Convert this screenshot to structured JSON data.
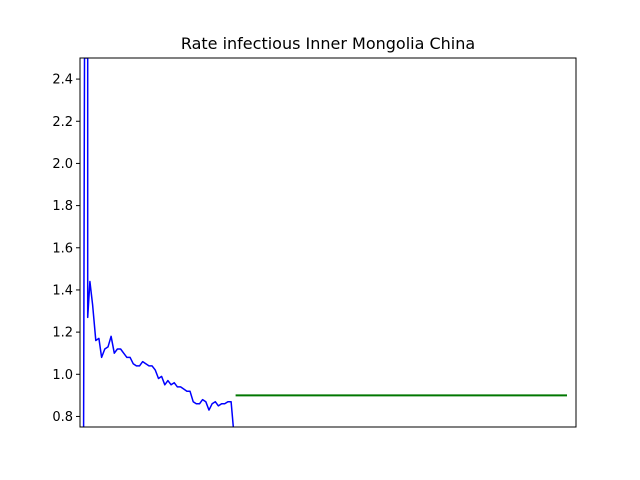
{
  "chart_data": {
    "type": "line",
    "title": "Rate infectious Inner Mongolia China",
    "xlabel": "",
    "ylabel": "",
    "xlim": [
      0,
      110
    ],
    "ylim": [
      0.75,
      2.5
    ],
    "yticks": [
      0.8,
      1.0,
      1.2,
      1.4,
      1.6,
      1.8,
      2.0,
      2.2,
      2.4
    ],
    "ytick_labels": [
      "0.8",
      "1.0",
      "1.2",
      "1.4",
      "1.6",
      "1.8",
      "2.0",
      "2.2",
      "2.4"
    ],
    "xticks_shown": false,
    "grid": false,
    "colors": {
      "observed": "#0000ff",
      "projection": "#007700"
    },
    "series": [
      {
        "color": "#0000ff",
        "x": [
          0.8,
          1.0,
          1.0,
          1.7,
          1.7,
          2.2,
          2.8,
          3.5,
          4.2,
          4.8,
          5.5,
          6.2,
          6.9,
          7.6,
          8.3,
          9.0,
          9.7,
          10.4,
          11.1,
          11.8,
          12.5,
          13.2,
          13.9,
          14.6,
          15.3,
          16.0,
          16.7,
          17.4,
          18.1,
          18.8,
          19.5,
          20.2,
          20.9,
          21.6,
          22.3,
          23.0,
          23.7,
          24.4,
          25.1,
          25.8,
          26.5,
          27.2,
          27.9,
          28.6,
          29.3,
          30.0,
          30.7,
          31.4,
          32.1,
          32.8,
          33.5,
          33.8,
          34.0
        ],
        "y": [
          0.75,
          2.5,
          2.5,
          2.5,
          1.27,
          1.44,
          1.33,
          1.16,
          1.17,
          1.08,
          1.12,
          1.13,
          1.18,
          1.1,
          1.12,
          1.12,
          1.1,
          1.08,
          1.08,
          1.05,
          1.04,
          1.04,
          1.06,
          1.05,
          1.04,
          1.04,
          1.02,
          0.98,
          0.99,
          0.95,
          0.97,
          0.95,
          0.96,
          0.94,
          0.94,
          0.93,
          0.92,
          0.92,
          0.87,
          0.86,
          0.86,
          0.88,
          0.87,
          0.83,
          0.86,
          0.87,
          0.85,
          0.86,
          0.86,
          0.87,
          0.87,
          0.8,
          0.75
        ]
      },
      {
        "color": "#007700",
        "x": [
          34.5,
          108
        ],
        "y": [
          0.9,
          0.9
        ]
      }
    ]
  }
}
